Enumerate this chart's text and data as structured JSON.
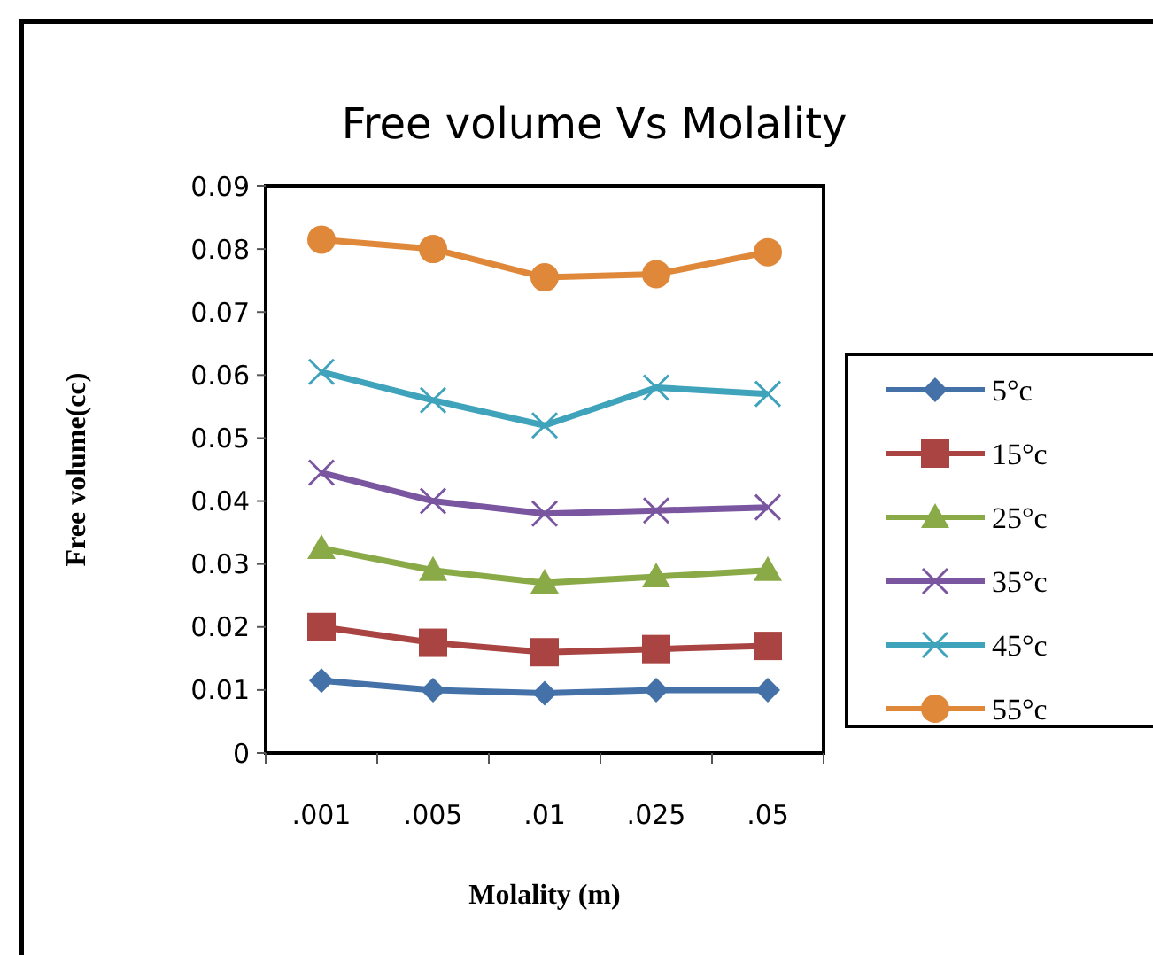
{
  "chart_data": {
    "type": "line",
    "title": "Free volume Vs Molality",
    "xlabel": "Molality (m)",
    "ylabel": "Free volume(cc)",
    "categories": [
      ".001",
      ".005",
      ".01",
      ".025",
      ".05"
    ],
    "series": [
      {
        "name": "5°c",
        "color": "#4472a8",
        "marker": "diamond",
        "values": [
          0.0115,
          0.01,
          0.0095,
          0.01,
          0.01
        ]
      },
      {
        "name": "15°c",
        "color": "#a94442",
        "marker": "square",
        "values": [
          0.02,
          0.0175,
          0.016,
          0.0165,
          0.017
        ]
      },
      {
        "name": "25°c",
        "color": "#8aaa48",
        "marker": "triangle",
        "values": [
          0.0325,
          0.029,
          0.027,
          0.028,
          0.029
        ]
      },
      {
        "name": "35°c",
        "color": "#7a56a0",
        "marker": "cross",
        "values": [
          0.0445,
          0.04,
          0.038,
          0.0385,
          0.039
        ]
      },
      {
        "name": "45°c",
        "color": "#3ea3bb",
        "marker": "cross",
        "values": [
          0.0605,
          0.056,
          0.052,
          0.058,
          0.057
        ]
      },
      {
        "name": "55°c",
        "color": "#e0883a",
        "marker": "circle",
        "values": [
          0.0815,
          0.08,
          0.0755,
          0.076,
          0.0795
        ]
      }
    ],
    "ylim": [
      0,
      0.09
    ],
    "yticks": [
      0,
      0.01,
      0.02,
      0.03,
      0.04,
      0.05,
      0.06,
      0.07,
      0.08,
      0.09
    ],
    "grid": false,
    "legend": "right",
    "line_style": "solid"
  }
}
